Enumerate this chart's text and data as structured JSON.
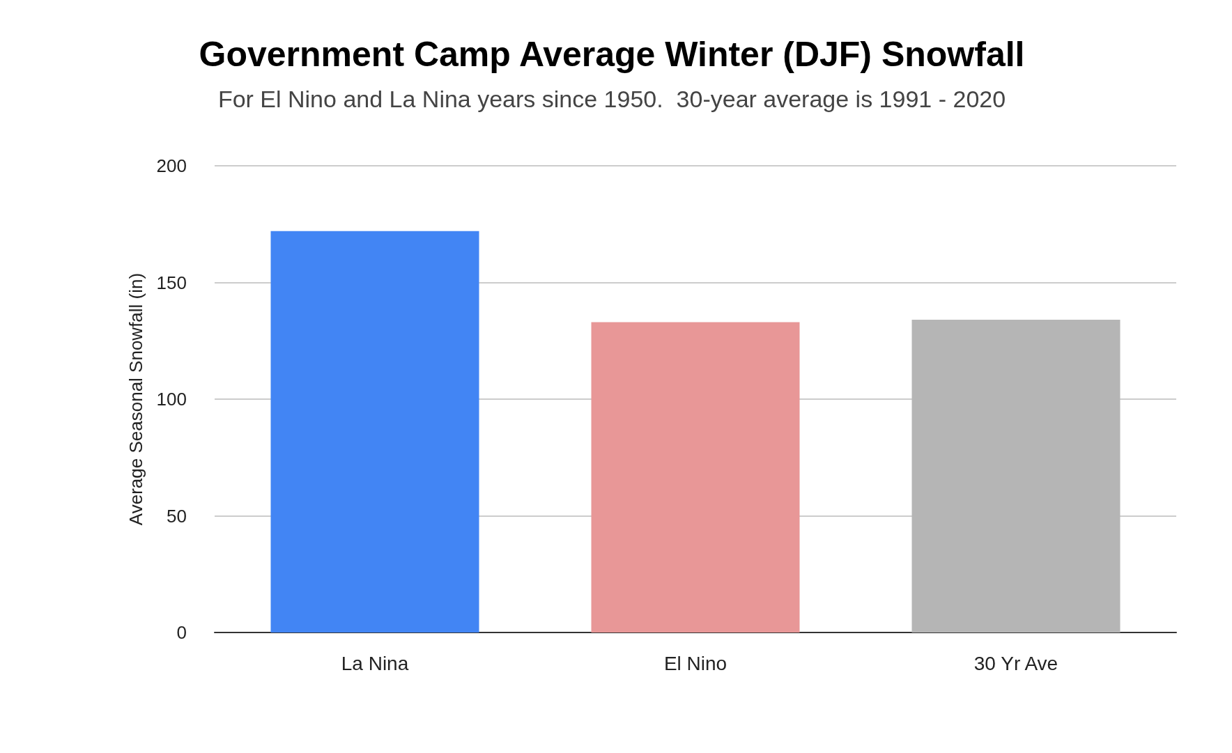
{
  "chart_data": {
    "type": "bar",
    "title": "Government Camp Average Winter (DJF) Snowfall",
    "subtitle": "For El Nino and La Nina years since 1950.  30-year average is 1991 - 2020",
    "ylabel": "Average Seasonal Snowfall (in)",
    "categories": [
      "La Nina",
      "El Nino",
      "30 Yr Ave"
    ],
    "values": [
      172,
      133,
      134
    ],
    "colors": [
      "#4285f4",
      "#e89797",
      "#b5b5b5"
    ],
    "ylim": [
      0,
      200
    ],
    "yticks": [
      0,
      50,
      100,
      150,
      200
    ],
    "grid": "y"
  }
}
